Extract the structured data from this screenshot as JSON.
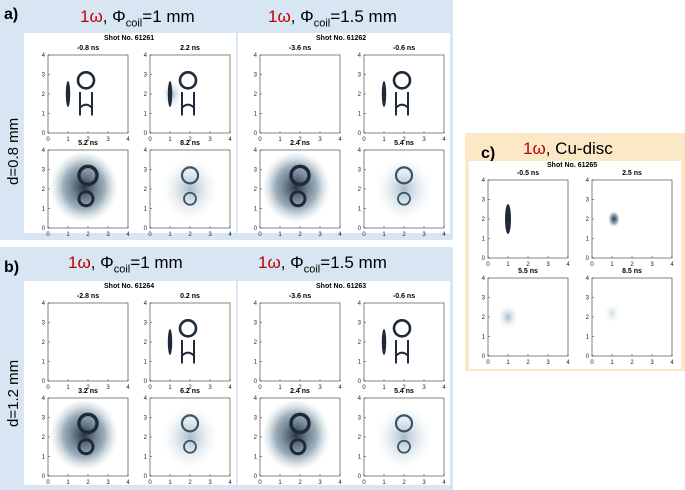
{
  "panels": {
    "a": {
      "label": "a)",
      "row_label": "d=0.8 mm",
      "groups": [
        {
          "omega": "1ω",
          "phi_prefix": ", Φ",
          "phi_sub": "coil",
          "phi_value": "=1 mm",
          "shot": "Shot No. 61261",
          "times": [
            "-0.8 ns",
            "2.2 ns",
            "5.2 ns",
            "8.2 ns"
          ]
        },
        {
          "omega": "1ω",
          "phi_prefix": ", Φ",
          "phi_sub": "coil",
          "phi_value": "=1.5 mm",
          "shot": "Shot No. 61262",
          "times": [
            "-3.6 ns",
            "-0.6 ns",
            "2.4 ns",
            "5.4 ns"
          ]
        }
      ]
    },
    "b": {
      "label": "b)",
      "row_label": "d=1.2 mm",
      "groups": [
        {
          "omega": "1ω",
          "phi_prefix": ", Φ",
          "phi_sub": "coil",
          "phi_value": "=1 mm",
          "shot": "Shot No. 61264",
          "times": [
            "-2.8 ns",
            "0.2 ns",
            "3.2 ns",
            "6.2 ns"
          ]
        },
        {
          "omega": "1ω",
          "phi_prefix": ", Φ",
          "phi_sub": "coil",
          "phi_value": "=1.5 mm",
          "shot": "Shot No. 61263",
          "times": [
            "-3.6 ns",
            "-0.6 ns",
            "2.4 ns",
            "5.4 ns"
          ]
        }
      ]
    },
    "c": {
      "label": "c)",
      "omega": "1ω",
      "title_rest": ", Cu-disc",
      "shot": "Shot No. 61265",
      "times": [
        "-0.5 ns",
        "2.5 ns",
        "5.5 ns",
        "8.5 ns"
      ]
    }
  },
  "axis_ticks": [
    "0",
    "1",
    "2",
    "3",
    "4"
  ],
  "colors": {
    "panel_blue": "#d8e6f3",
    "panel_orange": "#fbe8c6",
    "omega_red": "#c00000",
    "image_ink": "#1e2a3a"
  }
}
